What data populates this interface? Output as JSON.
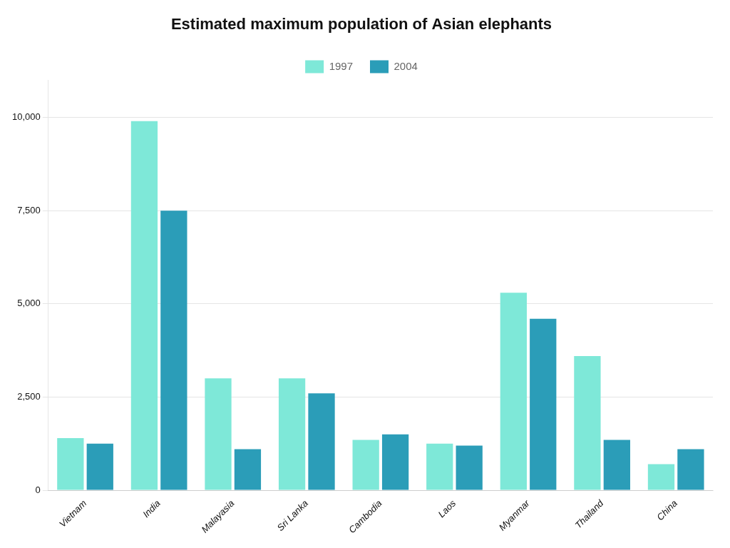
{
  "chart_data": {
    "type": "bar",
    "title": "Estimated maximum population of Asian elephants",
    "categories": [
      "Vietnam",
      "India",
      "Malayasia",
      "Sri Lanka",
      "Cambodia",
      "Laos",
      "Myanmar",
      "Thailand",
      "China"
    ],
    "series": [
      {
        "name": "1997",
        "color": "#7EE8D8",
        "values": [
          1400,
          9900,
          3000,
          3000,
          1350,
          1250,
          5300,
          3600,
          700
        ]
      },
      {
        "name": "2004",
        "color": "#2B9DB8",
        "values": [
          1250,
          7500,
          1100,
          2600,
          1500,
          1200,
          4600,
          1350,
          1100
        ]
      }
    ],
    "ylim": [
      0,
      11000
    ],
    "yticks": [
      0,
      {
        "value": 2500,
        "label": "2,500"
      },
      {
        "value": 5000,
        "label": "5,000"
      },
      {
        "value": 7500,
        "label": "7,500"
      },
      {
        "value": 10000,
        "label": "10,000"
      }
    ],
    "grid": true,
    "legend": "top"
  }
}
